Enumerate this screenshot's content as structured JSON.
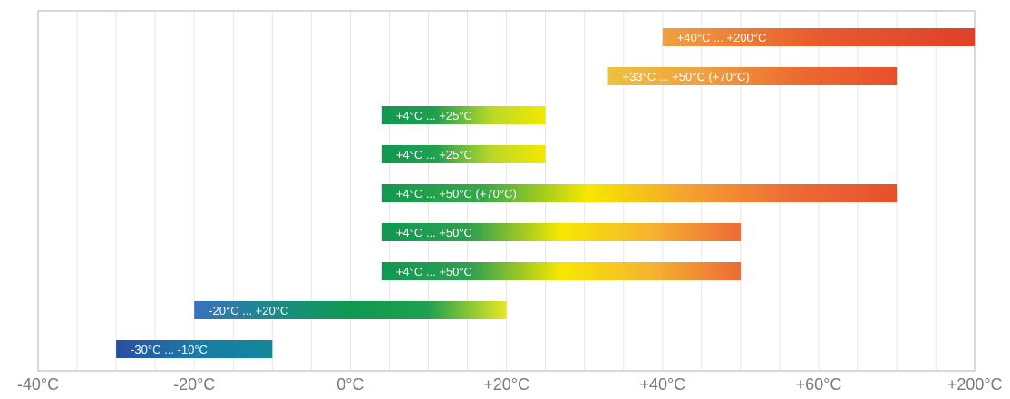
{
  "chart_data": {
    "type": "bar",
    "orientation": "horizontal-range",
    "x_ticks": [
      "-40°C",
      "-20°C",
      "0°C",
      "+20°C",
      "+40°C",
      "+60°C",
      "+200°C"
    ],
    "grid": true,
    "bars": [
      {
        "label": "+40°C ... +200°C",
        "start": 40,
        "end": 80,
        "colors": [
          "#f0a040",
          "#e85a2e",
          "#e0402a"
        ]
      },
      {
        "label": "+33°C ... +50°C (+70°C)",
        "start": 33,
        "end": 70,
        "colors": [
          "#ecc23e",
          "#f0a040",
          "#ec6a30",
          "#e8502c"
        ]
      },
      {
        "label": "+4°C ... +25°C",
        "start": 4,
        "end": 25,
        "colors": [
          "#109850",
          "#20a050",
          "#b8d828",
          "#f6e800"
        ]
      },
      {
        "label": "+4°C ... +25°C",
        "start": 4,
        "end": 25,
        "colors": [
          "#109850",
          "#20a050",
          "#b8d828",
          "#f6e800"
        ]
      },
      {
        "label": "+4°C ... +50°C (+70°C)",
        "start": 4,
        "end": 70,
        "colors": [
          "#109850",
          "#38a848",
          "#f6e800",
          "#f5a030",
          "#ec6a36",
          "#e8502c"
        ]
      },
      {
        "label": "+4°C ... +50°C",
        "start": 4,
        "end": 50,
        "colors": [
          "#109850",
          "#30a050",
          "#f6e800",
          "#f5b430",
          "#ec6a36"
        ]
      },
      {
        "label": "+4°C ... +50°C",
        "start": 4,
        "end": 50,
        "colors": [
          "#109850",
          "#30a050",
          "#f6e800",
          "#f5b430",
          "#ec6a36"
        ]
      },
      {
        "label": "-20°C ... +20°C",
        "start": -20,
        "end": 20,
        "colors": [
          "#3a70c0",
          "#1a8a88",
          "#109850",
          "#20a050",
          "#e8e820"
        ]
      },
      {
        "label": "-30°C ... -10°C",
        "start": -30,
        "end": -10,
        "colors": [
          "#2a4ea0",
          "#1a7aa8",
          "#10889a"
        ]
      }
    ]
  }
}
